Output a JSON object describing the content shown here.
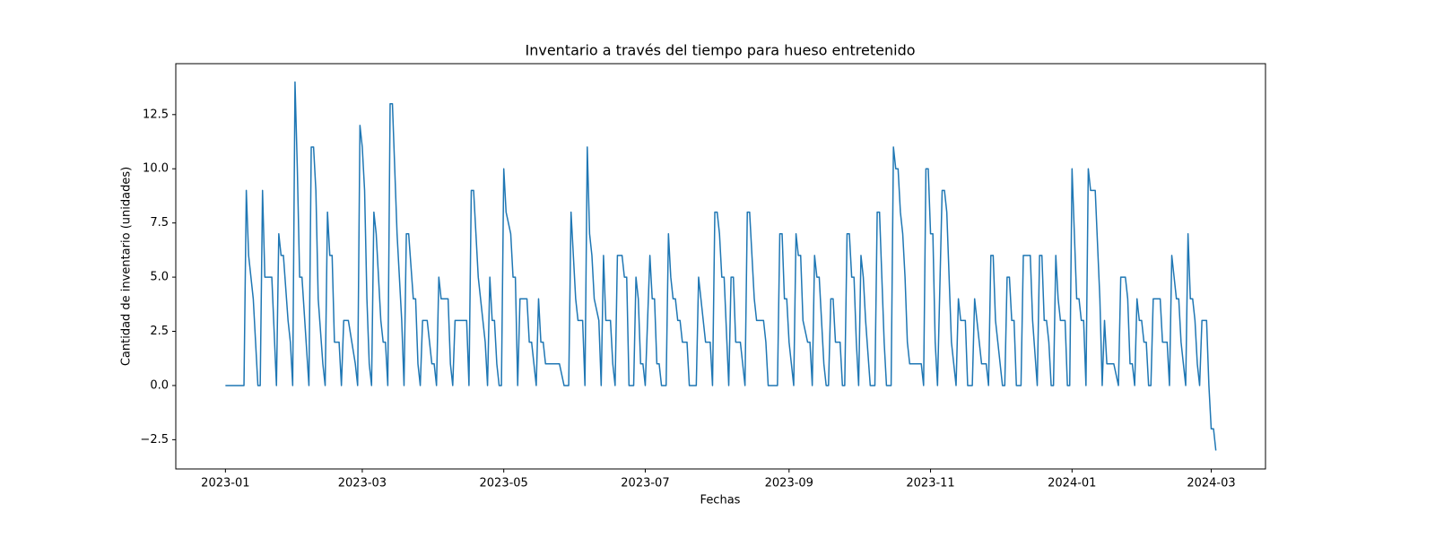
{
  "chart_data": {
    "type": "line",
    "title": "Inventario a través del tiempo para hueso entretenido",
    "xlabel": "Fechas",
    "ylabel": "Cantidad de inventario (unidades)",
    "xlim": [
      19336.6,
      19806.4
    ],
    "xticks": [
      {
        "value": 19358,
        "label": "2023-01"
      },
      {
        "value": 19417,
        "label": "2023-03"
      },
      {
        "value": 19478,
        "label": "2023-05"
      },
      {
        "value": 19539,
        "label": "2023-07"
      },
      {
        "value": 19601,
        "label": "2023-09"
      },
      {
        "value": 19662,
        "label": "2023-11"
      },
      {
        "value": 19723,
        "label": "2024-01"
      },
      {
        "value": 19783,
        "label": "2024-03"
      }
    ],
    "ylim": [
      -3.85,
      14.85
    ],
    "yticks": [
      {
        "value": -2.5,
        "label": "−2.5"
      },
      {
        "value": 0,
        "label": "0.0"
      },
      {
        "value": 2.5,
        "label": "2.5"
      },
      {
        "value": 5,
        "label": "5.0"
      },
      {
        "value": 7.5,
        "label": "7.5"
      },
      {
        "value": 10,
        "label": "10.0"
      },
      {
        "value": 12.5,
        "label": "12.5"
      }
    ],
    "grid": false,
    "color": "#1f77b4",
    "x": [
      19358,
      19366,
      19367,
      19368,
      19370,
      19372,
      19373,
      19374,
      19375,
      19378,
      19380,
      19381,
      19382,
      19383,
      19385,
      19386,
      19387,
      19388,
      19389,
      19390,
      19391,
      19394,
      19395,
      19396,
      19397,
      19398,
      19400,
      19401,
      19402,
      19403,
      19404,
      19405,
      19407,
      19408,
      19409,
      19411,
      19414,
      19415,
      19416,
      19417,
      19418,
      19419,
      19420,
      19421,
      19422,
      19423,
      19425,
      19426,
      19427,
      19428,
      19429,
      19430,
      19432,
      19434,
      19435,
      19436,
      19437,
      19439,
      19440,
      19441,
      19442,
      19443,
      19445,
      19447,
      19448,
      19449,
      19450,
      19451,
      19454,
      19455,
      19456,
      19457,
      19462,
      19463,
      19464,
      19465,
      19467,
      19469,
      19470,
      19471,
      19472,
      19473,
      19474,
      19475,
      19476,
      19477,
      19478,
      19479,
      19481,
      19482,
      19483,
      19484,
      19485,
      19488,
      19489,
      19490,
      19492,
      19493,
      19494,
      19495,
      19496,
      19502,
      19504,
      19506,
      19507,
      19508,
      19509,
      19510,
      19512,
      19513,
      19514,
      19515,
      19516,
      19517,
      19519,
      19520,
      19521,
      19522,
      19524,
      19525,
      19526,
      19527,
      19529,
      19530,
      19531,
      19532,
      19534,
      19535,
      19536,
      19537,
      19538,
      19539,
      19541,
      19542,
      19543,
      19544,
      19545,
      19546,
      19548,
      19549,
      19550,
      19551,
      19552,
      19553,
      19554,
      19555,
      19557,
      19558,
      19561,
      19562,
      19563,
      19565,
      19567,
      19568,
      19569,
      19570,
      19571,
      19572,
      19573,
      19575,
      19576,
      19577,
      19578,
      19580,
      19582,
      19583,
      19584,
      19586,
      19587,
      19590,
      19591,
      19592,
      19596,
      19597,
      19598,
      19599,
      19600,
      19601,
      19602,
      19603,
      19604,
      19605,
      19606,
      19607,
      19609,
      19610,
      19611,
      19612,
      19613,
      19614,
      19615,
      19616,
      19617,
      19618,
      19619,
      19620,
      19621,
      19623,
      19624,
      19625,
      19626,
      19627,
      19628,
      19629,
      19630,
      19631,
      19632,
      19633,
      19634,
      19636,
      19638,
      19639,
      19640,
      19641,
      19642,
      19643,
      19645,
      19646,
      19647,
      19648,
      19649,
      19650,
      19651,
      19652,
      19653,
      19658,
      19659,
      19660,
      19661,
      19662,
      19663,
      19664,
      19665,
      19667,
      19668,
      19669,
      19671,
      19673,
      19674,
      19675,
      19677,
      19678,
      19680,
      19681,
      19682,
      19684,
      19686,
      19687,
      19688,
      19689,
      19690,
      19692,
      19693,
      19694,
      19695,
      19696,
      19697,
      19698,
      19699,
      19701,
      19702,
      19705,
      19706,
      19708,
      19709,
      19710,
      19711,
      19712,
      19713,
      19714,
      19715,
      19716,
      19717,
      19718,
      19720,
      19721,
      19722,
      19723,
      19724,
      19725,
      19726,
      19727,
      19728,
      19729,
      19730,
      19731,
      19733,
      19735,
      19736,
      19737,
      19738,
      19741,
      19743,
      19744,
      19746,
      19747,
      19748,
      19749,
      19750,
      19751,
      19752,
      19753,
      19754,
      19755,
      19756,
      19757,
      19758,
      19761,
      19762,
      19764,
      19765,
      19766,
      19767,
      19768,
      19769,
      19770,
      19771,
      19772,
      19773,
      19774,
      19775,
      19776,
      19777,
      19778,
      19779,
      19781,
      19782,
      19783,
      19784,
      19785
    ],
    "values": [
      0,
      0,
      9,
      6,
      4,
      0,
      0,
      9,
      5,
      5,
      0,
      7,
      6,
      6,
      3,
      2,
      0,
      14,
      10,
      5,
      5,
      0,
      11,
      11,
      9,
      4,
      1,
      0,
      8,
      6,
      6,
      2,
      2,
      0,
      3,
      3,
      1,
      0,
      12,
      11,
      9,
      4,
      1,
      0,
      8,
      7,
      3,
      2,
      2,
      0,
      13,
      13,
      7,
      3,
      0,
      7,
      7,
      4,
      4,
      1,
      0,
      3,
      3,
      1,
      1,
      0,
      5,
      4,
      4,
      1,
      0,
      3,
      3,
      0,
      9,
      9,
      5,
      3,
      2,
      0,
      5,
      3,
      3,
      1,
      0,
      0,
      10,
      8,
      7,
      5,
      5,
      0,
      4,
      4,
      2,
      2,
      0,
      4,
      2,
      2,
      1,
      1,
      0,
      0,
      8,
      6,
      4,
      3,
      3,
      0,
      11,
      7,
      6,
      4,
      3,
      0,
      6,
      3,
      3,
      1,
      0,
      6,
      6,
      5,
      5,
      0,
      0,
      5,
      4,
      1,
      1,
      0,
      6,
      4,
      4,
      1,
      1,
      0,
      0,
      7,
      5,
      4,
      4,
      3,
      3,
      2,
      2,
      0,
      0,
      5,
      4,
      2,
      2,
      0,
      8,
      8,
      7,
      5,
      5,
      0,
      5,
      5,
      2,
      2,
      0,
      8,
      8,
      4,
      3,
      3,
      2,
      0,
      0,
      7,
      7,
      4,
      4,
      2,
      1,
      0,
      7,
      6,
      6,
      3,
      2,
      2,
      0,
      6,
      5,
      5,
      3,
      1,
      0,
      0,
      4,
      4,
      2,
      2,
      0,
      0,
      7,
      7,
      5,
      5,
      2,
      0,
      6,
      5,
      3,
      0,
      0,
      8,
      8,
      5,
      2,
      0,
      0,
      11,
      10,
      10,
      8,
      7,
      5,
      2,
      1,
      1,
      0,
      10,
      10,
      7,
      7,
      2,
      0,
      9,
      9,
      8,
      2,
      0,
      4,
      3,
      3,
      0,
      0,
      4,
      3,
      1,
      1,
      0,
      6,
      6,
      3,
      1,
      0,
      0,
      5,
      5,
      3,
      3,
      0,
      0,
      6,
      6,
      3,
      0,
      6,
      6,
      3,
      3,
      2,
      0,
      0,
      6,
      4,
      3,
      3,
      0,
      0,
      10,
      7,
      4,
      4,
      3,
      3,
      0,
      10,
      9,
      9,
      4,
      0,
      3,
      1,
      1,
      0,
      5,
      5,
      4,
      1,
      1,
      0,
      4,
      3,
      3,
      2,
      2,
      0,
      0,
      4,
      4,
      2,
      2,
      0,
      6,
      5,
      4,
      4,
      2,
      1,
      0,
      7,
      4,
      4,
      3,
      1,
      0,
      3,
      3,
      0,
      -2,
      -2,
      -3
    ]
  }
}
